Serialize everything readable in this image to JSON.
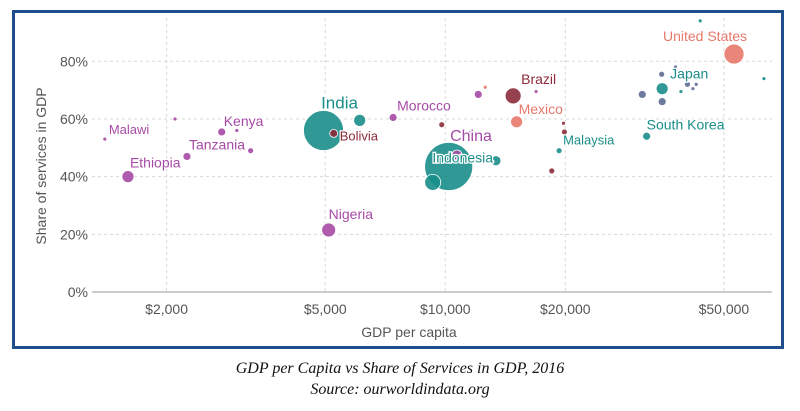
{
  "caption": {
    "line1": "GDP per Capita vs Share of Services in GDP, 2016",
    "line2": "Source: ourworldindata.org"
  },
  "chart_data": {
    "type": "scatter",
    "title": "",
    "xlabel": "GDP per capita",
    "ylabel": "Share of services in GDP",
    "x_scale": "log",
    "xlim": [
      1300,
      66000
    ],
    "ylim": [
      0,
      95
    ],
    "grid": true,
    "x_ticks": [
      {
        "value": 2000,
        "label": "$2,000"
      },
      {
        "value": 5000,
        "label": "$5,000"
      },
      {
        "value": 10000,
        "label": "$10,000"
      },
      {
        "value": 20000,
        "label": "$20,000"
      },
      {
        "value": 50000,
        "label": "$50,000"
      }
    ],
    "y_ticks": [
      {
        "value": 0,
        "label": "0%"
      },
      {
        "value": 20,
        "label": "20%"
      },
      {
        "value": 40,
        "label": "40%"
      },
      {
        "value": 60,
        "label": "60%"
      },
      {
        "value": 80,
        "label": "80%"
      }
    ],
    "colors": {
      "teal": "#1a8e8a",
      "purple": "#a64aa6",
      "maroon": "#8b2c3a",
      "salmon": "#e8786a",
      "slate": "#5d6c94"
    },
    "points": [
      {
        "label": "Malawi",
        "x": 1400,
        "y": 53,
        "size": 2,
        "color": "purple",
        "label_dx": 4,
        "label_dy": -5,
        "anchor": "start",
        "font": 13
      },
      {
        "label": "Ethiopia",
        "x": 1600,
        "y": 40,
        "size": 6,
        "color": "purple",
        "label_dx": 2,
        "label_dy": -9,
        "anchor": "start",
        "font": 14
      },
      {
        "label": "",
        "x": 2100,
        "y": 60,
        "size": 2,
        "color": "purple"
      },
      {
        "label": "Tanzania",
        "x": 2250,
        "y": 47,
        "size": 4,
        "color": "purple",
        "label_dx": 2,
        "label_dy": -7,
        "anchor": "start",
        "font": 14
      },
      {
        "label": "Kenya",
        "x": 2750,
        "y": 55.5,
        "size": 4,
        "color": "purple",
        "label_dx": 2,
        "label_dy": -6,
        "anchor": "start",
        "font": 14
      },
      {
        "label": "",
        "x": 3000,
        "y": 56,
        "size": 2,
        "color": "purple"
      },
      {
        "label": "",
        "x": 3250,
        "y": 49,
        "size": 3,
        "color": "purple"
      },
      {
        "label": "India",
        "x": 4950,
        "y": 56,
        "size": 20,
        "color": "teal",
        "label_dx": 16,
        "label_dy": -22,
        "anchor": "middle",
        "font": 17
      },
      {
        "label": "Bolivia",
        "x": 5250,
        "y": 55,
        "size": 4,
        "color": "maroon",
        "label_dx": 6,
        "label_dy": 7,
        "anchor": "start",
        "font": 13
      },
      {
        "label": "",
        "x": 6100,
        "y": 59.5,
        "size": 6,
        "color": "teal"
      },
      {
        "label": "Nigeria",
        "x": 5100,
        "y": 21.5,
        "size": 7,
        "color": "purple",
        "label_dx": 0,
        "label_dy": -11,
        "anchor": "start",
        "font": 14
      },
      {
        "label": "Morocco",
        "x": 7400,
        "y": 60.5,
        "size": 4,
        "color": "purple",
        "label_dx": 4,
        "label_dy": -7,
        "anchor": "start",
        "font": 14
      },
      {
        "label": "",
        "x": 9800,
        "y": 58,
        "size": 3,
        "color": "maroon"
      },
      {
        "label": "",
        "x": 9300,
        "y": 38,
        "size": 8,
        "color": "teal"
      },
      {
        "label": "Indonesia",
        "x": 10200,
        "y": 43.5,
        "size": 24,
        "color": "teal",
        "label_dx": 14,
        "label_dy": -4,
        "anchor": "middle",
        "font": 14
      },
      {
        "label": "China",
        "x": 10700,
        "y": 47.5,
        "size": 5,
        "color": "purple",
        "label_dx": 14,
        "label_dy": -14,
        "anchor": "middle",
        "font": 16
      },
      {
        "label": "",
        "x": 11600,
        "y": 55.5,
        "size": 2,
        "color": "purple"
      },
      {
        "label": "",
        "x": 13400,
        "y": 45.5,
        "size": 5,
        "color": "teal"
      },
      {
        "label": "",
        "x": 12100,
        "y": 68.5,
        "size": 4,
        "color": "purple"
      },
      {
        "label": "",
        "x": 12600,
        "y": 71,
        "size": 2,
        "color": "salmon"
      },
      {
        "label": "Brazil",
        "x": 14800,
        "y": 68,
        "size": 8,
        "color": "maroon",
        "label_dx": 8,
        "label_dy": -12,
        "anchor": "start",
        "font": 14
      },
      {
        "label": "Mexico",
        "x": 15100,
        "y": 59,
        "size": 6,
        "color": "salmon",
        "label_dx": 2,
        "label_dy": -8,
        "anchor": "start",
        "font": 14
      },
      {
        "label": "",
        "x": 16900,
        "y": 69.5,
        "size": 2,
        "color": "purple"
      },
      {
        "label": "",
        "x": 18500,
        "y": 42,
        "size": 3,
        "color": "maroon"
      },
      {
        "label": "Malaysia",
        "x": 19300,
        "y": 49,
        "size": 3,
        "color": "teal",
        "label_dx": 4,
        "label_dy": -6,
        "anchor": "start",
        "font": 13
      },
      {
        "label": "",
        "x": 19900,
        "y": 55.5,
        "size": 3,
        "color": "maroon"
      },
      {
        "label": "",
        "x": 19800,
        "y": 58.5,
        "size": 2,
        "color": "maroon"
      },
      {
        "label": "South Korea",
        "x": 32000,
        "y": 54,
        "size": 4,
        "color": "teal",
        "label_dx": 0,
        "label_dy": -7,
        "anchor": "start",
        "font": 14
      },
      {
        "label": "",
        "x": 31200,
        "y": 68.5,
        "size": 4,
        "color": "slate"
      },
      {
        "label": "",
        "x": 35000,
        "y": 66,
        "size": 4,
        "color": "slate"
      },
      {
        "label": "Japan",
        "x": 35000,
        "y": 70.5,
        "size": 6,
        "color": "teal",
        "label_dx": 8,
        "label_dy": -10,
        "anchor": "start",
        "font": 14
      },
      {
        "label": "",
        "x": 34900,
        "y": 75.5,
        "size": 3,
        "color": "slate"
      },
      {
        "label": "",
        "x": 37800,
        "y": 78,
        "size": 2,
        "color": "slate"
      },
      {
        "label": "",
        "x": 39000,
        "y": 69.5,
        "size": 2,
        "color": "teal"
      },
      {
        "label": "",
        "x": 40500,
        "y": 72,
        "size": 3,
        "color": "slate"
      },
      {
        "label": "",
        "x": 41800,
        "y": 70.5,
        "size": 2,
        "color": "slate"
      },
      {
        "label": "",
        "x": 42600,
        "y": 72,
        "size": 2,
        "color": "slate"
      },
      {
        "label": "",
        "x": 43600,
        "y": 94,
        "size": 2,
        "color": "teal"
      },
      {
        "label": "United States",
        "x": 53000,
        "y": 82.5,
        "size": 10,
        "color": "salmon",
        "label_dx": -29,
        "label_dy": -13,
        "anchor": "middle",
        "font": 14
      },
      {
        "label": "",
        "x": 63000,
        "y": 74,
        "size": 2,
        "color": "teal"
      }
    ]
  }
}
